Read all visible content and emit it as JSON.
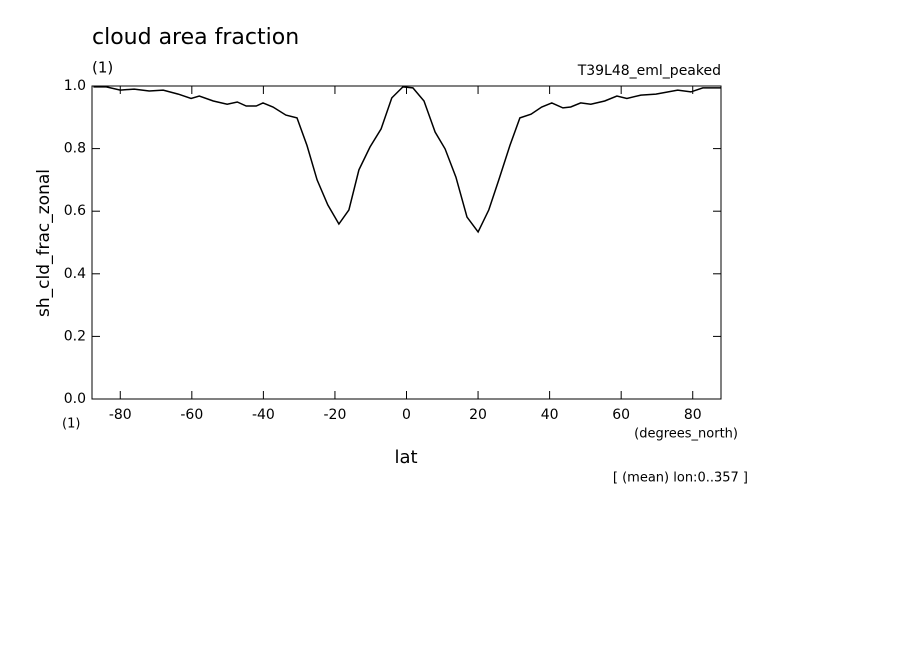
{
  "chart_data": {
    "type": "line",
    "title": "cloud area fraction",
    "title_units": "(1)",
    "experiment": "T39L48_eml_peaked",
    "x_label": "lat",
    "x_units": "(degrees_north)",
    "y_label": "sh_cld_frac_zonal",
    "y_units": "(1)",
    "annotation": "[ (mean) lon:0..357 ]",
    "color": "#000000",
    "xlim": [
      -87.9,
      87.9
    ],
    "ylim": [
      0,
      1
    ],
    "xticks": [
      -80,
      -60,
      -40,
      -20,
      0,
      20,
      40,
      60,
      80
    ],
    "yticks": [
      {
        "value": 0,
        "label": "0.0"
      },
      0.2,
      0.4,
      0.6,
      0.8,
      {
        "value": 1,
        "label": "1.0"
      }
    ],
    "x": [
      -87.5,
      -83.9,
      -80.0,
      -76.1,
      -71.9,
      -68.0,
      -63.8,
      -60.2,
      -57.9,
      -54.0,
      -50.1,
      -47.3,
      -44.8,
      -42.0,
      -40.1,
      -37.3,
      -33.7,
      -30.6,
      -27.8,
      -25.0,
      -22.0,
      -18.9,
      -16.1,
      -13.3,
      -10.2,
      -7.1,
      -4.1,
      -1.0,
      1.8,
      4.9,
      8.0,
      10.8,
      13.8,
      16.9,
      20.0,
      23.0,
      25.8,
      28.9,
      31.7,
      34.8,
      37.8,
      40.6,
      43.7,
      45.9,
      48.7,
      51.5,
      55.4,
      58.8,
      61.6,
      65.5,
      69.7,
      75.8,
      79.5,
      82.8,
      85.6,
      87.9
    ],
    "values": [
      0.997,
      0.997,
      0.987,
      0.99,
      0.984,
      0.987,
      0.974,
      0.96,
      0.968,
      0.952,
      0.942,
      0.949,
      0.936,
      0.936,
      0.946,
      0.933,
      0.907,
      0.898,
      0.81,
      0.7,
      0.62,
      0.559,
      0.604,
      0.732,
      0.805,
      0.863,
      0.962,
      0.997,
      0.994,
      0.952,
      0.853,
      0.799,
      0.709,
      0.581,
      0.534,
      0.604,
      0.7,
      0.81,
      0.898,
      0.91,
      0.933,
      0.946,
      0.93,
      0.933,
      0.946,
      0.942,
      0.952,
      0.968,
      0.96,
      0.971,
      0.974,
      0.987,
      0.981,
      0.994,
      0.994,
      0.994
    ]
  }
}
